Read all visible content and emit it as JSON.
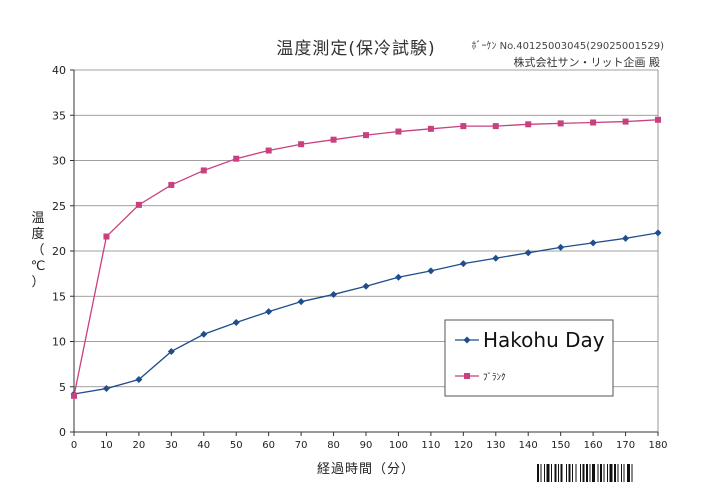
{
  "header": {
    "title": "温度測定(保冷試験)",
    "ref_no": "ﾎﾞｰｹﾝ No.40125003045(29025001529)",
    "company": "株式会社サン・リット企画 殿"
  },
  "colors": {
    "series_blue": "#1F4E8C",
    "series_pink": "#C8407F",
    "grid": "#808080",
    "axis": "#333333"
  },
  "chart_data": {
    "type": "line",
    "title": "温度測定(保冷試験)",
    "xlabel": "経過時間（分）",
    "ylabel": "温度（℃）",
    "ylabel_chars": [
      "温",
      "度",
      "（",
      "℃",
      "）"
    ],
    "x": [
      0,
      10,
      20,
      30,
      40,
      50,
      60,
      70,
      80,
      90,
      100,
      110,
      120,
      130,
      140,
      150,
      160,
      170,
      180
    ],
    "xlim": [
      0,
      180
    ],
    "ylim": [
      0,
      40
    ],
    "xticks": [
      0,
      10,
      20,
      30,
      40,
      50,
      60,
      70,
      80,
      90,
      100,
      110,
      120,
      130,
      140,
      150,
      160,
      170,
      180
    ],
    "yticks": [
      0,
      5,
      10,
      15,
      20,
      25,
      30,
      35,
      40
    ],
    "grid": true,
    "legend_position": "bottom-right",
    "series": [
      {
        "name": "Hakohu Day",
        "marker": "diamond",
        "color": "#1F4E8C",
        "values": [
          4.2,
          4.8,
          5.8,
          8.9,
          10.8,
          12.1,
          13.3,
          14.4,
          15.2,
          16.1,
          17.1,
          17.8,
          18.6,
          19.2,
          19.8,
          20.4,
          20.9,
          21.4,
          22.0
        ]
      },
      {
        "name": "ﾌﾞﾗﾝｸ",
        "marker": "square",
        "color": "#C8407F",
        "values": [
          4.0,
          21.6,
          25.1,
          27.3,
          28.9,
          30.2,
          31.1,
          31.8,
          32.3,
          32.8,
          33.2,
          33.5,
          33.8,
          33.8,
          34.0,
          34.1,
          34.2,
          34.3,
          34.5
        ]
      }
    ]
  }
}
